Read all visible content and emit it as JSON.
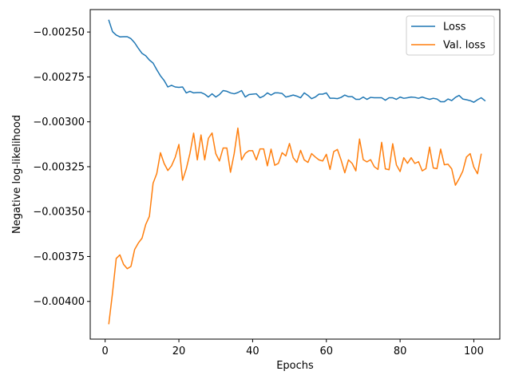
{
  "chart_data": {
    "type": "line",
    "xlabel": "Epochs",
    "ylabel": "Negative log-likelihood",
    "xlim": [
      -4.05,
      107.05
    ],
    "ylim": [
      -0.00421,
      -0.002375
    ],
    "xticks": [
      0,
      20,
      40,
      60,
      80,
      100
    ],
    "xtick_labels": [
      "0",
      "20",
      "40",
      "60",
      "80",
      "100"
    ],
    "yticks": [
      -0.004,
      -0.00375,
      -0.0035,
      -0.00325,
      -0.003,
      -0.00275,
      -0.0025
    ],
    "ytick_labels": [
      "−0.00400",
      "−0.00375",
      "−0.00350",
      "−0.00325",
      "−0.00300",
      "−0.00275",
      "−0.00250"
    ],
    "grid": false,
    "legend_position": "upper right",
    "series": [
      {
        "name": "Loss",
        "color": "#1f77b4",
        "values": [
          -0.002435,
          -0.002498,
          -0.002517,
          -0.002527,
          -0.002526,
          -0.002526,
          -0.002537,
          -0.00256,
          -0.002591,
          -0.002619,
          -0.002632,
          -0.002656,
          -0.002673,
          -0.00271,
          -0.002744,
          -0.00277,
          -0.002806,
          -0.002797,
          -0.002806,
          -0.002808,
          -0.002806,
          -0.002839,
          -0.00283,
          -0.002839,
          -0.002837,
          -0.002837,
          -0.002846,
          -0.002862,
          -0.002844,
          -0.002862,
          -0.002848,
          -0.002826,
          -0.00283,
          -0.002839,
          -0.002844,
          -0.002837,
          -0.002826,
          -0.002862,
          -0.002848,
          -0.002846,
          -0.002844,
          -0.002866,
          -0.002857,
          -0.002839,
          -0.002851,
          -0.002839,
          -0.002839,
          -0.002842,
          -0.002862,
          -0.002857,
          -0.002851,
          -0.002857,
          -0.002866,
          -0.002839,
          -0.002853,
          -0.002871,
          -0.002862,
          -0.002846,
          -0.002846,
          -0.002839,
          -0.002869,
          -0.002869,
          -0.002871,
          -0.002864,
          -0.002851,
          -0.00286,
          -0.00286,
          -0.002875,
          -0.002875,
          -0.002862,
          -0.002875,
          -0.002864,
          -0.002866,
          -0.002866,
          -0.002866,
          -0.00288,
          -0.002866,
          -0.002866,
          -0.002875,
          -0.002862,
          -0.002869,
          -0.002866,
          -0.002862,
          -0.002864,
          -0.002869,
          -0.002862,
          -0.002869,
          -0.002875,
          -0.002869,
          -0.002873,
          -0.002888,
          -0.002888,
          -0.002873,
          -0.002882,
          -0.002864,
          -0.002853,
          -0.002873,
          -0.002877,
          -0.002882,
          -0.002891,
          -0.002877,
          -0.002866,
          -0.002882
        ]
      },
      {
        "name": "Val. loss",
        "color": "#ff7f0e",
        "values": [
          -0.004124,
          -0.003952,
          -0.003761,
          -0.003741,
          -0.003794,
          -0.003818,
          -0.003805,
          -0.003711,
          -0.003675,
          -0.003648,
          -0.003572,
          -0.003526,
          -0.003342,
          -0.003288,
          -0.003172,
          -0.003232,
          -0.003271,
          -0.003245,
          -0.003198,
          -0.003126,
          -0.003325,
          -0.003262,
          -0.003176,
          -0.003063,
          -0.003212,
          -0.003073,
          -0.003212,
          -0.003092,
          -0.003062,
          -0.003177,
          -0.003218,
          -0.003146,
          -0.003146,
          -0.003281,
          -0.003177,
          -0.003035,
          -0.003212,
          -0.003176,
          -0.003161,
          -0.003161,
          -0.003212,
          -0.003151,
          -0.003151,
          -0.003245,
          -0.003152,
          -0.003242,
          -0.003231,
          -0.003172,
          -0.00319,
          -0.003121,
          -0.0032,
          -0.003226,
          -0.003159,
          -0.003212,
          -0.003226,
          -0.003177,
          -0.003196,
          -0.003212,
          -0.003218,
          -0.003181,
          -0.003265,
          -0.003166,
          -0.003154,
          -0.003213,
          -0.003284,
          -0.003212,
          -0.003232,
          -0.003273,
          -0.003096,
          -0.003211,
          -0.003223,
          -0.003211,
          -0.00325,
          -0.003265,
          -0.003114,
          -0.003262,
          -0.003267,
          -0.003122,
          -0.00324,
          -0.003277,
          -0.0032,
          -0.003231,
          -0.0032,
          -0.003232,
          -0.003222,
          -0.003273,
          -0.003261,
          -0.003141,
          -0.003257,
          -0.003261,
          -0.003152,
          -0.003239,
          -0.003236,
          -0.003262,
          -0.003353,
          -0.003317,
          -0.003275,
          -0.003196,
          -0.003177,
          -0.003252,
          -0.003289,
          -0.003181
        ]
      }
    ]
  }
}
